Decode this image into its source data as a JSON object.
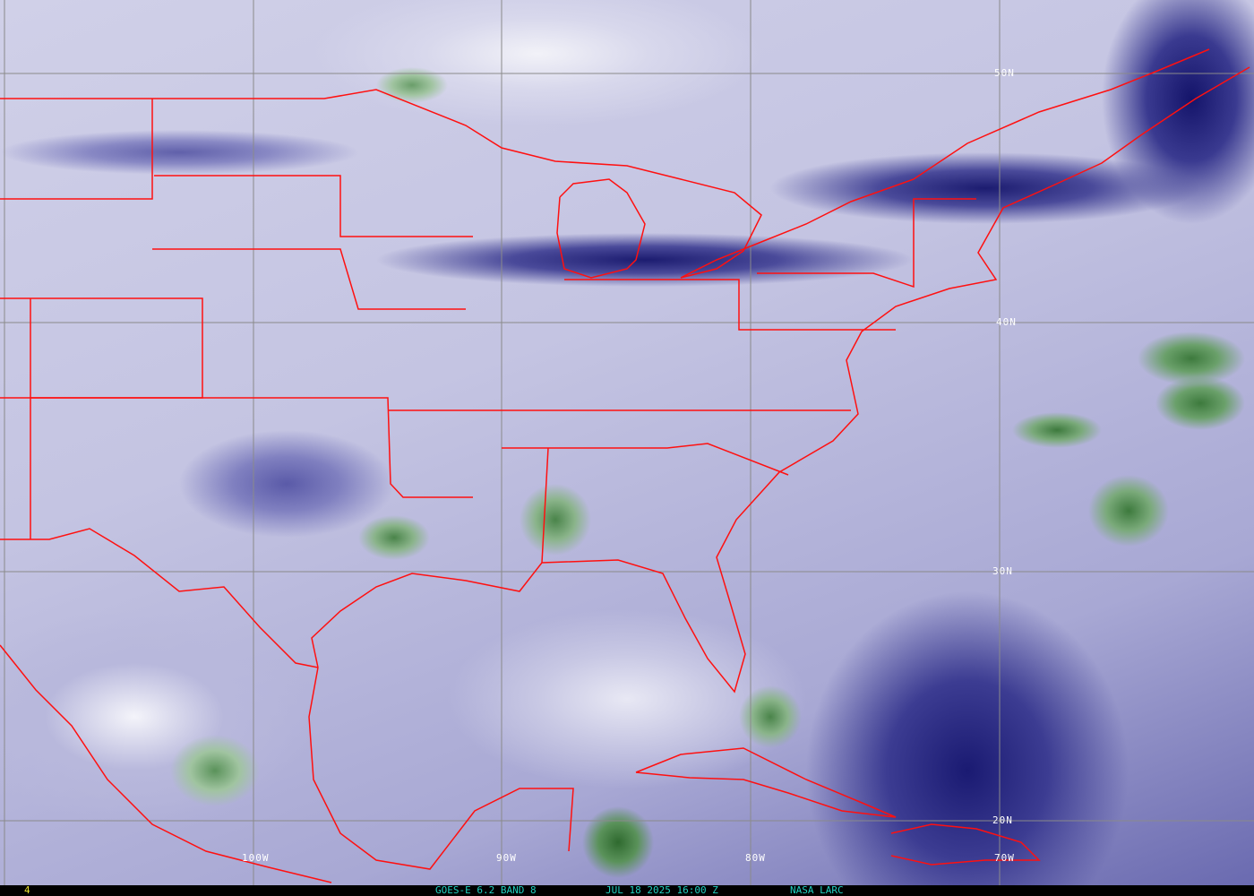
{
  "image": {
    "product": "water-vapor-satellite-image",
    "colors": {
      "overlay_borders": "#ff1010",
      "gridlines": "#8a8a8a",
      "footer_text": "#20d0c0",
      "frame_number": "#e8e030",
      "dry": "#1c1c70",
      "moist": "#f4f4fa",
      "clouds": "#3d7a3d"
    }
  },
  "latitude_labels": [
    "50N",
    "40N",
    "30N",
    "20N"
  ],
  "longitude_labels": [
    "100W",
    "90W",
    "80W",
    "70W"
  ],
  "footer": {
    "frame_number": "4",
    "satellite_band": "GOES-E 6.2 BAND 8",
    "timestamp": "JUL 18 2025 16:00 Z",
    "credit": "NASA LARC"
  }
}
